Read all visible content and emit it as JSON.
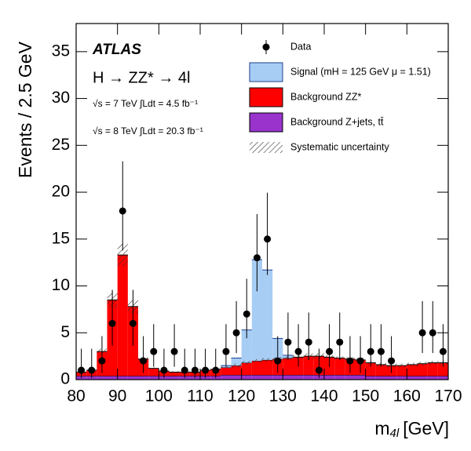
{
  "chart_data": {
    "type": "stacked_histogram",
    "ylabel": "Events / 2.5 GeV",
    "xlabel": "m",
    "xlabel_sub": "4l",
    "xlabel_unit": "[GeV]",
    "annotations": [
      "ATLAS",
      "H → ZZ* → 4l",
      "√s = 7 TeV  ∫Ldt = 4.5 fb⁻¹",
      "√s = 8 TeV  ∫Ldt = 20.3 fb⁻¹"
    ],
    "bins": [
      80,
      82.5,
      85,
      87.5,
      90,
      92.5,
      95,
      97.5,
      100,
      102.5,
      105,
      107.5,
      110,
      112.5,
      115,
      117.5,
      120,
      122.5,
      125,
      127.5,
      130,
      132.5,
      135,
      137.5,
      140,
      142.5,
      145,
      147.5,
      150,
      152.5,
      155,
      157.5,
      160,
      162.5,
      165,
      167.5,
      170
    ],
    "xlim": [
      80,
      170
    ],
    "xticks": [
      80,
      90,
      100,
      110,
      120,
      130,
      140,
      150,
      160,
      170
    ],
    "ylim": [
      0,
      38
    ],
    "yticks": [
      0,
      5,
      10,
      15,
      20,
      25,
      30,
      35
    ],
    "data": {
      "name": "Data",
      "color": "#000000",
      "values": [
        1,
        1,
        2,
        6,
        18,
        6,
        2,
        3,
        1,
        3,
        1,
        1,
        1,
        1,
        3,
        5,
        7,
        13,
        15,
        2,
        4,
        3,
        4,
        1,
        3,
        4,
        2,
        2,
        3,
        3,
        2,
        null,
        null,
        5,
        5,
        3
      ],
      "err_low": [
        0.83,
        0.83,
        1.29,
        2.38,
        4.22,
        2.38,
        1.29,
        1.63,
        0.83,
        1.63,
        0.83,
        0.83,
        0.83,
        0.83,
        1.63,
        2.16,
        2.58,
        3.58,
        3.83,
        1.29,
        1.91,
        1.63,
        1.91,
        0.83,
        1.63,
        1.91,
        1.29,
        1.29,
        1.63,
        1.63,
        1.29,
        null,
        null,
        2.16,
        2.16,
        1.63
      ],
      "err_high": [
        2.3,
        2.3,
        2.64,
        3.58,
        5.3,
        3.58,
        2.64,
        2.92,
        2.3,
        2.92,
        2.3,
        2.3,
        2.3,
        2.3,
        2.92,
        3.38,
        3.77,
        4.67,
        4.95,
        2.64,
        3.16,
        2.92,
        3.16,
        2.3,
        2.92,
        3.16,
        2.64,
        2.64,
        2.92,
        2.92,
        2.64,
        null,
        null,
        3.38,
        3.38,
        2.92
      ]
    },
    "series": [
      {
        "name": "Signal (mH = 125 GeV μ = 1.51)",
        "color": "#a8cdf5",
        "edge": "#1f3f8f",
        "values": [
          0,
          0,
          0,
          0,
          0,
          0,
          0,
          0,
          0,
          0,
          0,
          0,
          0,
          0,
          0.2,
          0.8,
          3.5,
          10.8,
          9.6,
          2.2,
          0.3,
          0,
          0,
          0,
          0,
          0,
          0,
          0,
          0,
          0,
          0,
          0,
          0,
          0,
          0,
          0
        ]
      },
      {
        "name": "Background ZZ*",
        "color": "#ff0000",
        "edge": "#000000",
        "values": [
          0.4,
          0.6,
          2.6,
          8.1,
          12.9,
          7.4,
          1.8,
          0.8,
          0.5,
          0.4,
          0.4,
          0.4,
          0.6,
          0.7,
          0.8,
          1.0,
          1.3,
          1.5,
          1.6,
          1.7,
          1.8,
          1.9,
          2.0,
          2.0,
          1.9,
          1.8,
          1.7,
          1.6,
          1.4,
          1.2,
          1.1,
          1.1,
          1.2,
          1.3,
          1.4,
          1.4
        ]
      },
      {
        "name": "Background Z+jets, tt̄",
        "color": "#9933cc",
        "edge": "#000000",
        "values": [
          0.4,
          0.4,
          0.4,
          0.4,
          0.4,
          0.4,
          0.4,
          0.4,
          0.4,
          0.4,
          0.4,
          0.4,
          0.4,
          0.4,
          0.5,
          0.5,
          0.5,
          0.5,
          0.5,
          0.5,
          0.5,
          0.5,
          0.5,
          0.5,
          0.5,
          0.5,
          0.5,
          0.5,
          0.4,
          0.4,
          0.4,
          0.4,
          0.4,
          0.4,
          0.4,
          0.4
        ]
      },
      {
        "name": "Systematic uncertainty",
        "color": "#444444",
        "style": "hatch",
        "values": [
          0.1,
          0.1,
          0.3,
          0.8,
          1.2,
          0.7,
          0.2,
          0.1,
          0.1,
          0.1,
          0.1,
          0.1,
          0.1,
          0.1,
          0.1,
          0.2,
          0.2,
          0.2,
          0.2,
          0.2,
          0.2,
          0.2,
          0.3,
          0.3,
          0.2,
          0.2,
          0.2,
          0.2,
          0.2,
          0.2,
          0.2,
          0.2,
          0.2,
          0.2,
          0.2,
          0.2
        ]
      }
    ]
  }
}
